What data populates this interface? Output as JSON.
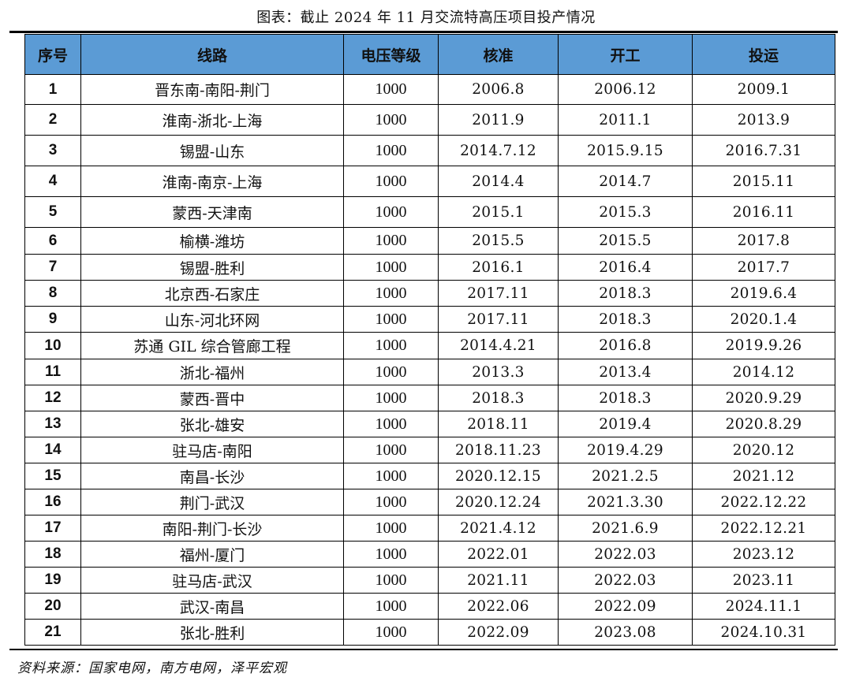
{
  "caption": "图表：截止 2024 年 11 月交流特高压项目投产情况",
  "table": {
    "headers": [
      "序号",
      "线路",
      "电压等级",
      "核准",
      "开工",
      "投运"
    ],
    "rows": [
      [
        "1",
        "晋东南-南阳-荆门",
        "1000",
        "2006.8",
        "2006.12",
        "2009.1"
      ],
      [
        "2",
        "淮南-浙北-上海",
        "1000",
        "2011.9",
        "2011.1",
        "2013.9"
      ],
      [
        "3",
        "锡盟-山东",
        "1000",
        "2014.7.12",
        "2015.9.15",
        "2016.7.31"
      ],
      [
        "4",
        "淮南-南京-上海",
        "1000",
        "2014.4",
        "2014.7",
        "2015.11"
      ],
      [
        "5",
        "蒙西-天津南",
        "1000",
        "2015.1",
        "2015.3",
        "2016.11"
      ],
      [
        "6",
        "榆横-潍坊",
        "1000",
        "2015.5",
        "2015.5",
        "2017.8"
      ],
      [
        "7",
        "锡盟-胜利",
        "1000",
        "2016.1",
        "2016.4",
        "2017.7"
      ],
      [
        "8",
        "北京西-石家庄",
        "1000",
        "2017.11",
        "2018.3",
        "2019.6.4"
      ],
      [
        "9",
        "山东-河北环网",
        "1000",
        "2017.11",
        "2018.3",
        "2020.1.4"
      ],
      [
        "10",
        "苏通 GIL 综合管廊工程",
        "1000",
        "2014.4.21",
        "2016.8",
        "2019.9.26"
      ],
      [
        "11",
        "浙北-福州",
        "1000",
        "2013.3",
        "2013.4",
        "2014.12"
      ],
      [
        "12",
        "蒙西-晋中",
        "1000",
        "2018.3",
        "2018.3",
        "2020.9.29"
      ],
      [
        "13",
        "张北-雄安",
        "1000",
        "2018.11",
        "2019.4",
        "2020.8.29"
      ],
      [
        "14",
        "驻马店-南阳",
        "1000",
        "2018.11.23",
        "2019.4.29",
        "2020.12"
      ],
      [
        "15",
        "南昌-长沙",
        "1000",
        "2020.12.15",
        "2021.2.5",
        "2021.12"
      ],
      [
        "16",
        "荆门-武汉",
        "1000",
        "2020.12.24",
        "2021.3.30",
        "2022.12.22"
      ],
      [
        "17",
        "南阳-荆门-长沙",
        "1000",
        "2021.4.12",
        "2021.6.9",
        "2022.12.21"
      ],
      [
        "18",
        "福州-厦门",
        "1000",
        "2022.01",
        "2022.03",
        "2023.12"
      ],
      [
        "19",
        "驻马店-武汉",
        "1000",
        "2021.11",
        "2022.03",
        "2023.11"
      ],
      [
        "20",
        "武汉-南昌",
        "1000",
        "2022.06",
        "2022.09",
        "2024.11.1"
      ],
      [
        "21",
        "张北-胜利",
        "1000",
        "2022.09",
        "2023.08",
        "2024.10.31"
      ]
    ]
  },
  "source": "资料来源：国家电网，南方电网，泽平宏观",
  "colors": {
    "header_bg": "#5b9bd5",
    "rule": "#000000"
  }
}
